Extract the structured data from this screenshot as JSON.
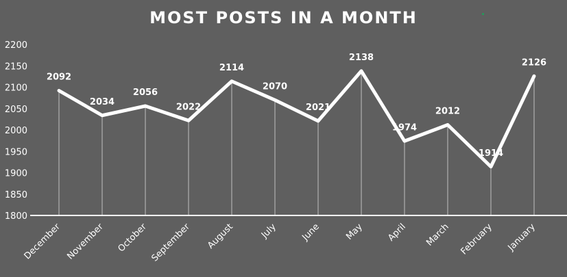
{
  "chart_data": {
    "type": "line",
    "title": "MOST POSTS IN A MONTH",
    "categories": [
      "December",
      "November",
      "October",
      "September",
      "August",
      "July",
      "June",
      "May",
      "April",
      "March",
      "February",
      "January"
    ],
    "values": [
      2092,
      2034,
      2056,
      2022,
      2114,
      2070,
      2021,
      2138,
      1974,
      2012,
      1914,
      2126
    ],
    "data_labels": [
      "2092",
      "2034",
      "2056",
      "2022",
      "2114",
      "2070",
      "2021",
      "2138",
      "1974",
      "2012",
      "1914",
      "2126"
    ],
    "yticks": [
      "1800",
      "1850",
      "1900",
      "1950",
      "2000",
      "2050",
      "2100",
      "2150",
      "2200"
    ],
    "ylim": [
      1800,
      2200
    ],
    "xlabel": "",
    "ylabel": "",
    "grid": false,
    "drop_lines": true,
    "colors": {
      "background": "#5f5f5f",
      "line": "#ffffff",
      "text": "#ffffff",
      "accent_dot": "#1f9e5a"
    }
  }
}
